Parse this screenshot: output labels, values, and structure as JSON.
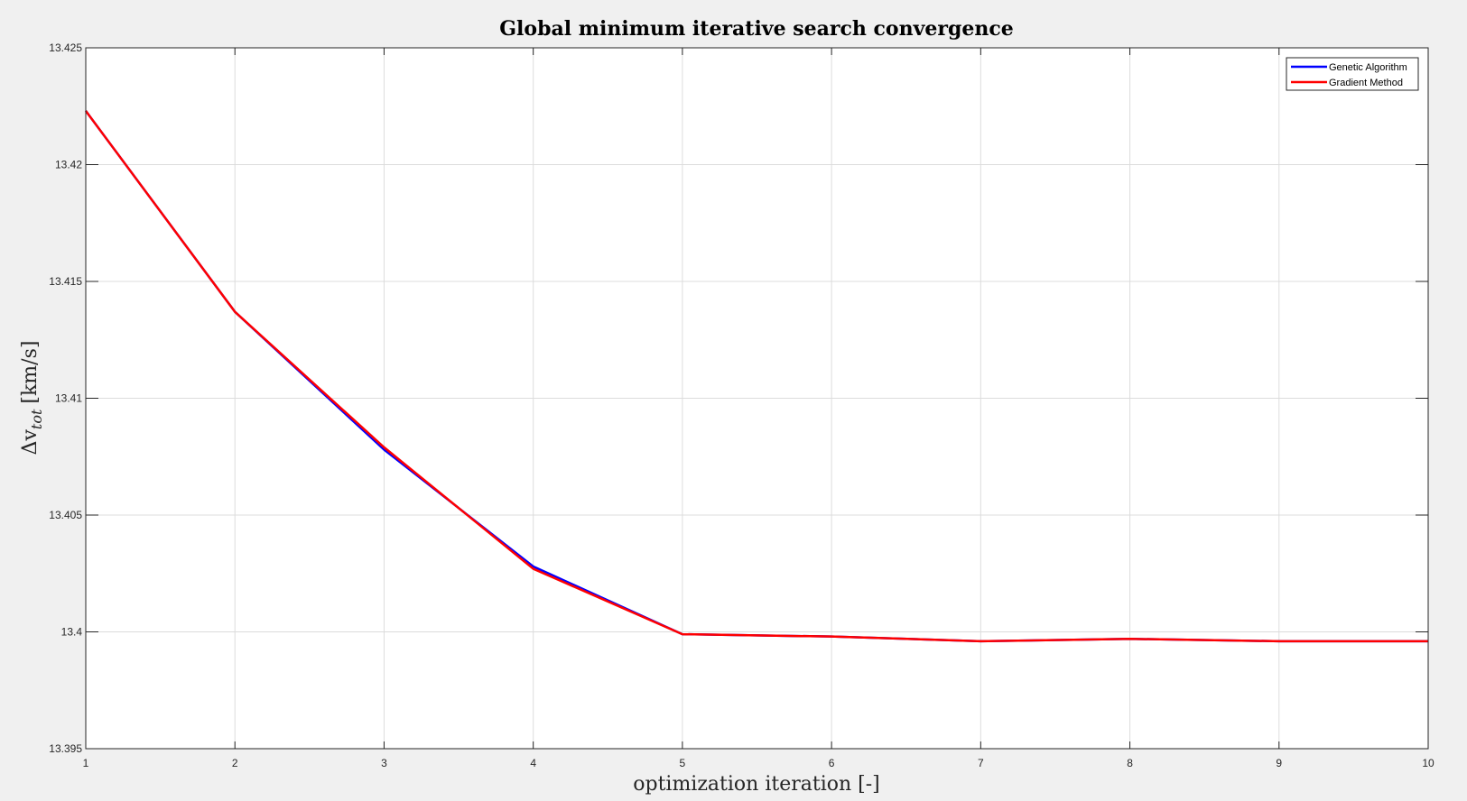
{
  "chart_data": {
    "type": "line",
    "title": "Global minimum iterative search convergence",
    "xlabel": "optimization iteration [-]",
    "ylabel": "Δv_tot [km/s]",
    "ylabel_main": "Δv",
    "ylabel_sub": "tot",
    "ylabel_unit": "[km/s]",
    "xlim": [
      1,
      10
    ],
    "ylim": [
      13.395,
      13.425
    ],
    "x_ticks": [
      1,
      2,
      3,
      4,
      5,
      6,
      7,
      8,
      9,
      10
    ],
    "y_ticks": [
      "13.395",
      "13.4",
      "13.405",
      "13.41",
      "13.415",
      "13.42",
      "13.425"
    ],
    "grid": true,
    "legend_position": "top-right",
    "x": [
      1,
      2,
      3,
      4,
      5,
      6,
      7,
      8,
      9,
      10
    ],
    "series": [
      {
        "name": "Genetic Algorithm",
        "color": "#0000ff",
        "values": [
          13.4223,
          13.4137,
          13.4078,
          13.4028,
          13.3999,
          13.3998,
          13.3996,
          13.3997,
          13.3996,
          13.3996
        ]
      },
      {
        "name": "Gradient Method",
        "color": "#ff0000",
        "values": [
          13.4223,
          13.4137,
          13.4079,
          13.4027,
          13.3999,
          13.3998,
          13.3996,
          13.3997,
          13.3996,
          13.3996
        ]
      }
    ]
  }
}
